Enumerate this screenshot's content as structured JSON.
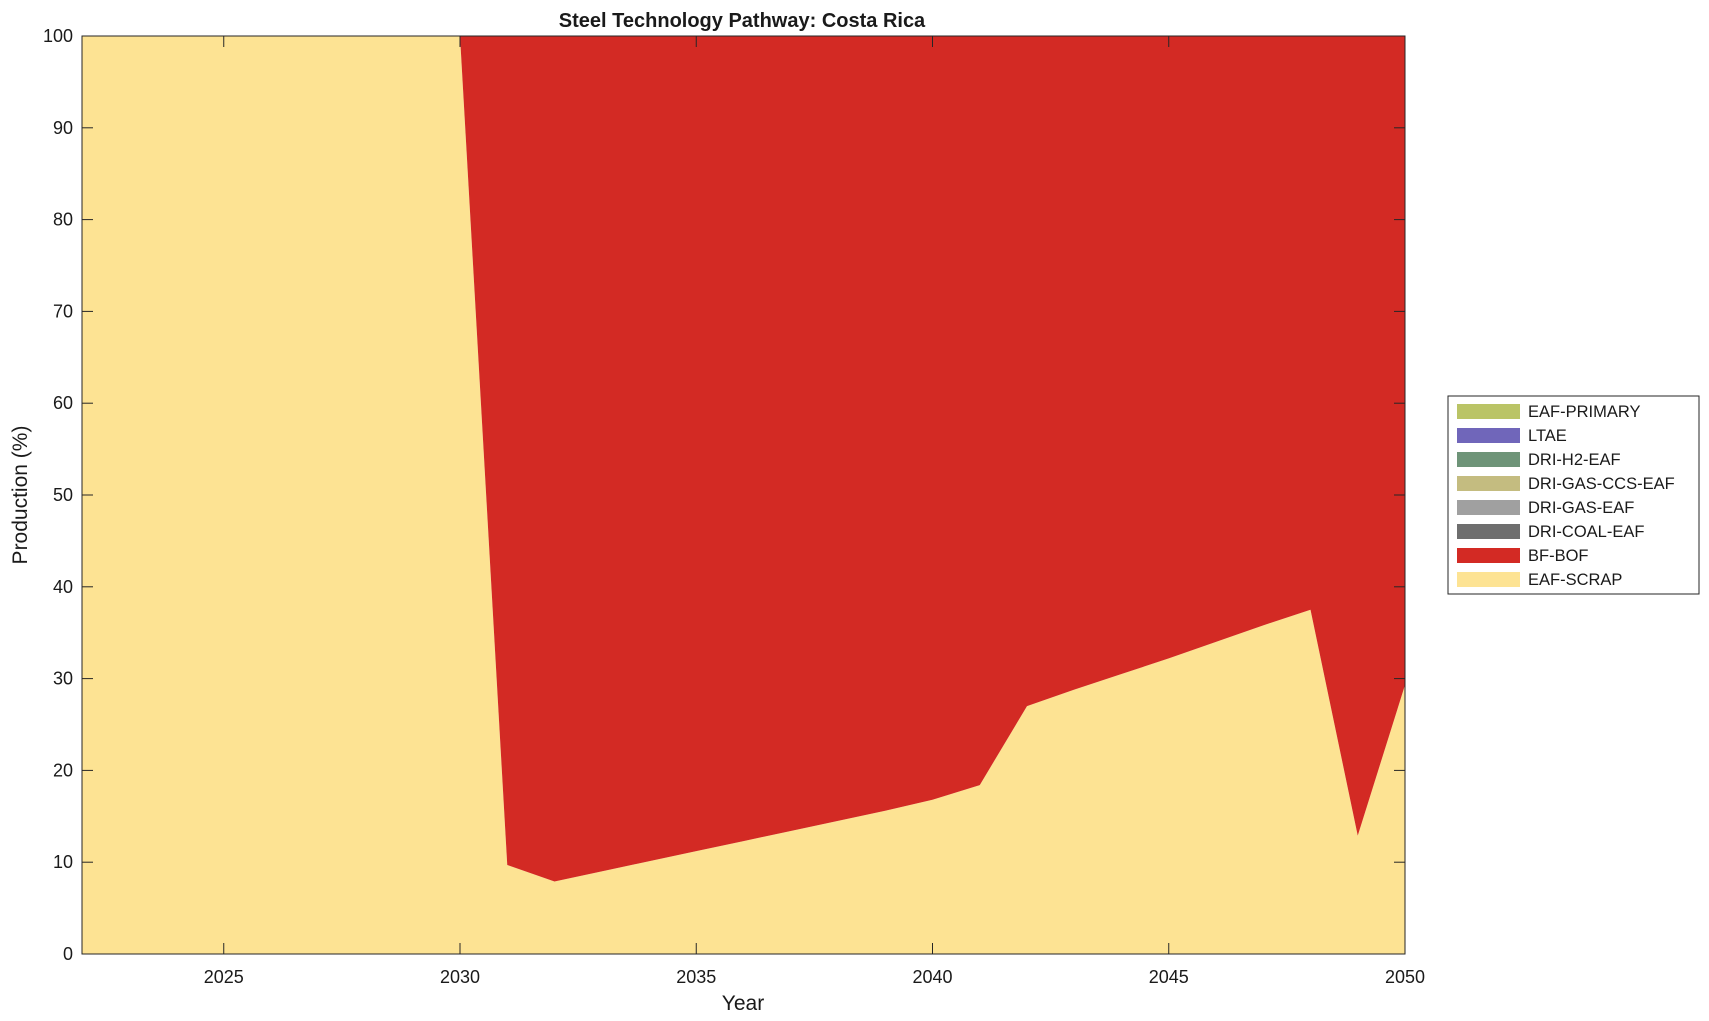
{
  "chart_data": {
    "type": "area",
    "stacked": true,
    "title": "Steel Technology Pathway: Costa Rica",
    "xlabel": "Year",
    "ylabel": "Production (%)",
    "xlim": [
      2022,
      2050
    ],
    "ylim": [
      0,
      100
    ],
    "xticks": [
      2025,
      2030,
      2035,
      2040,
      2045,
      2050
    ],
    "yticks": [
      0,
      10,
      20,
      30,
      40,
      50,
      60,
      70,
      80,
      90,
      100
    ],
    "grid": false,
    "legend_position": "right",
    "x": [
      2022,
      2023,
      2024,
      2025,
      2026,
      2027,
      2028,
      2029,
      2030,
      2031,
      2032,
      2033,
      2034,
      2035,
      2036,
      2037,
      2038,
      2039,
      2040,
      2041,
      2042,
      2043,
      2044,
      2045,
      2046,
      2047,
      2048,
      2049,
      2050
    ],
    "series": [
      {
        "name": "EAF-SCRAP",
        "color": "#fde393",
        "values": [
          100,
          100,
          100,
          100,
          100,
          100,
          100,
          100,
          100,
          9.7,
          7.9,
          9.0,
          10.1,
          11.2,
          12.3,
          13.4,
          14.5,
          15.6,
          16.8,
          18.4,
          27.0,
          28.8,
          30.5,
          32.2,
          34.0,
          35.8,
          37.5,
          12.9,
          29.3
        ]
      },
      {
        "name": "BF-BOF",
        "color": "#d32a24",
        "values": [
          0,
          0,
          0,
          0,
          0,
          0,
          0,
          0,
          0,
          90.3,
          92.1,
          91.0,
          89.9,
          88.8,
          87.7,
          86.6,
          85.5,
          84.4,
          83.2,
          81.6,
          73.0,
          71.2,
          69.5,
          67.8,
          66.0,
          64.2,
          62.5,
          87.1,
          70.7
        ]
      },
      {
        "name": "DRI-COAL-EAF",
        "color": "#6e6e6e",
        "values": [
          0,
          0,
          0,
          0,
          0,
          0,
          0,
          0,
          0,
          0,
          0,
          0,
          0,
          0,
          0,
          0,
          0,
          0,
          0,
          0,
          0,
          0,
          0,
          0,
          0,
          0,
          0,
          0,
          0
        ]
      },
      {
        "name": "DRI-GAS-EAF",
        "color": "#a0a0a0",
        "values": [
          0,
          0,
          0,
          0,
          0,
          0,
          0,
          0,
          0,
          0,
          0,
          0,
          0,
          0,
          0,
          0,
          0,
          0,
          0,
          0,
          0,
          0,
          0,
          0,
          0,
          0,
          0,
          0,
          0
        ]
      },
      {
        "name": "DRI-GAS-CCS-EAF",
        "color": "#c4bc80",
        "values": [
          0,
          0,
          0,
          0,
          0,
          0,
          0,
          0,
          0,
          0,
          0,
          0,
          0,
          0,
          0,
          0,
          0,
          0,
          0,
          0,
          0,
          0,
          0,
          0,
          0,
          0,
          0,
          0,
          0
        ]
      },
      {
        "name": "DRI-H2-EAF",
        "color": "#6e9478",
        "values": [
          0,
          0,
          0,
          0,
          0,
          0,
          0,
          0,
          0,
          0,
          0,
          0,
          0,
          0,
          0,
          0,
          0,
          0,
          0,
          0,
          0,
          0,
          0,
          0,
          0,
          0,
          0,
          0,
          0
        ]
      },
      {
        "name": "LTAE",
        "color": "#7066ba",
        "values": [
          0,
          0,
          0,
          0,
          0,
          0,
          0,
          0,
          0,
          0,
          0,
          0,
          0,
          0,
          0,
          0,
          0,
          0,
          0,
          0,
          0,
          0,
          0,
          0,
          0,
          0,
          0,
          0,
          0
        ]
      },
      {
        "name": "EAF-PRIMARY",
        "color": "#bac466",
        "values": [
          0,
          0,
          0,
          0,
          0,
          0,
          0,
          0,
          0,
          0,
          0,
          0,
          0,
          0,
          0,
          0,
          0,
          0,
          0,
          0,
          0,
          0,
          0,
          0,
          0,
          0,
          0,
          0,
          0
        ]
      }
    ],
    "legend_order": [
      "EAF-PRIMARY",
      "LTAE",
      "DRI-H2-EAF",
      "DRI-GAS-CCS-EAF",
      "DRI-GAS-EAF",
      "DRI-COAL-EAF",
      "BF-BOF",
      "EAF-SCRAP"
    ]
  }
}
